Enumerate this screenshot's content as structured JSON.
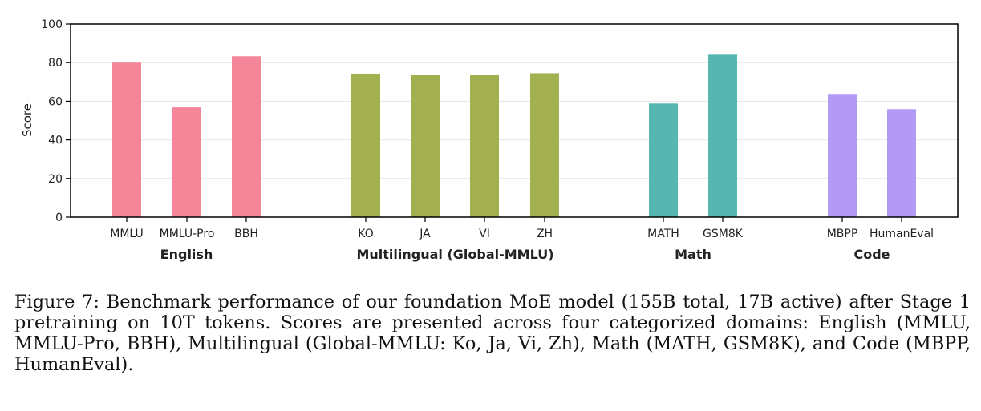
{
  "chart_data": {
    "type": "bar",
    "ylabel": "Score",
    "ylim": [
      0,
      100
    ],
    "yticks": [
      0,
      20,
      40,
      60,
      80,
      100
    ],
    "grid": "horizontal",
    "groups": [
      {
        "name": "English",
        "color": "#f5869a",
        "categories": [
          "MMLU",
          "MMLU-Pro",
          "BBH"
        ],
        "values": [
          80.0,
          56.8,
          83.3
        ]
      },
      {
        "name": "Multilingual (Global-MMLU)",
        "color": "#a3b04f",
        "categories": [
          "KO",
          "JA",
          "VI",
          "ZH"
        ],
        "values": [
          74.3,
          73.6,
          73.7,
          74.5
        ]
      },
      {
        "name": "Math",
        "color": "#55b7b0",
        "categories": [
          "MATH",
          "GSM8K"
        ],
        "values": [
          58.8,
          84.1
        ]
      },
      {
        "name": "Code",
        "color": "#b39af5",
        "categories": [
          "MBPP",
          "HumanEval"
        ],
        "values": [
          63.8,
          55.9
        ]
      }
    ]
  },
  "caption": "Figure 7: Benchmark performance of our foundation MoE model (155B total, 17B active) after Stage 1 pretraining on 10T tokens. Scores are presented across four categorized domains: English (MMLU, MMLU-Pro, BBH), Multilingual (Global-MMLU: Ko, Ja, Vi, Zh), Math (MATH, GSM8K), and Code (MBPP, HumanEval)."
}
